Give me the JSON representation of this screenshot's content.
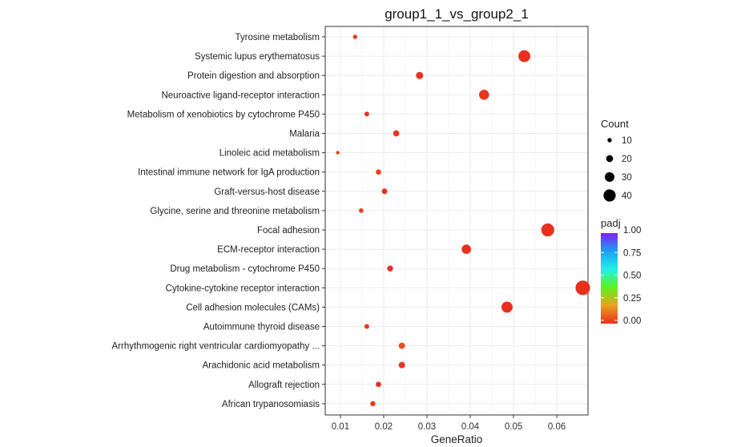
{
  "chart_data": {
    "type": "scatter",
    "title": "group1_1_vs_group2_1",
    "xlabel": "GeneRatio",
    "ylabel": "",
    "xlim": [
      0.0065,
      0.0672
    ],
    "xticks": [
      0.01,
      0.02,
      0.03,
      0.04,
      0.05,
      0.06
    ],
    "xtick_labels": [
      "0.01",
      "0.02",
      "0.03",
      "0.04",
      "0.05",
      "0.06"
    ],
    "grid": true,
    "categories": [
      "Tyrosine metabolism",
      "Systemic lupus erythematosus",
      "Protein digestion and absorption",
      "Neuroactive ligand-receptor interaction",
      "Metabolism of xenobiotics by cytochrome P450",
      "Malaria",
      "Linoleic acid metabolism",
      "Intestinal immune network for IgA production",
      "Graft-versus-host disease",
      "Glycine, serine and threonine metabolism",
      "Focal adhesion",
      "ECM-receptor interaction",
      "Drug metabolism - cytochrome P450",
      "Cytokine-cytokine receptor interaction",
      "Cell adhesion molecules (CAMs)",
      "Autoimmune thyroid disease",
      "Arrhythmogenic right ventricular cardiomyopathy ...",
      "Arachidonic acid metabolism",
      "Allograft rejection",
      "African trypanosomiasis"
    ],
    "gene_ratio": [
      0.0134,
      0.0525,
      0.0283,
      0.0432,
      0.0161,
      0.0229,
      0.0094,
      0.0188,
      0.0202,
      0.0148,
      0.0579,
      0.0391,
      0.0215,
      0.066,
      0.0485,
      0.0161,
      0.0242,
      0.0242,
      0.0188,
      0.0175
    ],
    "count": [
      10,
      39,
      21,
      32,
      12,
      17,
      7,
      14,
      15,
      11,
      43,
      29,
      16,
      49,
      36,
      12,
      18,
      18,
      14,
      13
    ],
    "padj": [
      0.02,
      0.0,
      0.0,
      0.01,
      0.01,
      0.01,
      0.03,
      0.03,
      0.0,
      0.03,
      0.0,
      0.0,
      0.0,
      0.0,
      0.0,
      0.02,
      0.05,
      0.01,
      0.0,
      0.02
    ],
    "size_legend": {
      "title": "Count",
      "values": [
        10,
        20,
        30,
        40
      ],
      "labels": [
        "10",
        "20",
        "30",
        "40"
      ]
    },
    "color_legend": {
      "title": "padj",
      "min": 0,
      "max": 1,
      "ticks": [
        0.0,
        0.25,
        0.5,
        0.75,
        1.0
      ],
      "labels": [
        "0.00",
        "0.25",
        "0.50",
        "0.75",
        "1.00"
      ],
      "colors": [
        "#e8301f",
        "#e8a21f",
        "#5ff21f",
        "#1ff2e8",
        "#1f9ef2",
        "#7f1ff2"
      ]
    },
    "colors": {
      "panel_border": "#333333",
      "grid": "#ebebeb",
      "grid_minor": "#f4f4f4"
    }
  }
}
